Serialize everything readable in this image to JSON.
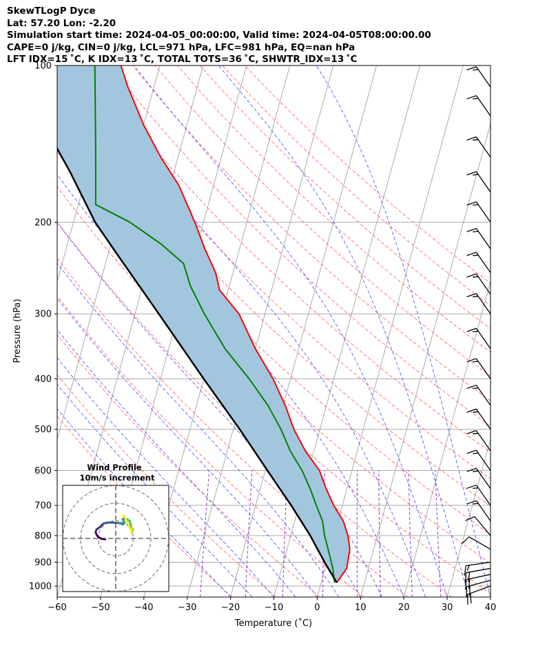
{
  "header": {
    "line1": "SkewTLogP Dyce",
    "line2": "Lat: 57.20   Lon: -2.20",
    "line3": "Simulation start time: 2024-04-05_00:00:00, Valid time: 2024-04-05T08:00:00.00",
    "line4": "CAPE=0 j/kg, CIN=0 j/kg, LCL=971 hPa, LFC=981 hPa, EQ=nan hPa",
    "line5": "LFT IDX=15 ˚C, K IDX=13 ˚C, TOTAL TOTS=36 ˚C, SHWTR_IDX=13 ˚C"
  },
  "colors": {
    "temperature": "#ff0000",
    "dewpoint": "#008000",
    "parcel": "#000000",
    "cape_fill": "#a3c6df",
    "dry_adiabats": "#ff6666",
    "moist_adiabats": "#4d4dff",
    "mixing_ratio": "#9933cc",
    "isotherms": "#aaaaaa"
  },
  "chart_data": {
    "type": "line",
    "subtype": "skew-T log-P",
    "xlabel": "Temperature (˚C)",
    "ylabel": "Pressure (hPa)",
    "xlim": [
      -60,
      40
    ],
    "ylim": [
      1050,
      100
    ],
    "y_scale": "log",
    "x_ticks": [
      "−60",
      "−50",
      "−40",
      "−30",
      "−20",
      "−10",
      "0",
      "10",
      "20",
      "30",
      "40"
    ],
    "y_ticks": [
      "100",
      "200",
      "300",
      "400",
      "500",
      "600",
      "700",
      "800",
      "900",
      "1000"
    ],
    "grid": true,
    "series": [
      {
        "key": "temperature",
        "points": [
          [
            3.6,
            985
          ],
          [
            5.0,
            925
          ],
          [
            4.5,
            850
          ],
          [
            3.2,
            800
          ],
          [
            1.2,
            750
          ],
          [
            -2.0,
            700
          ],
          [
            -4.8,
            650
          ],
          [
            -7.5,
            600
          ],
          [
            -12.0,
            550
          ],
          [
            -16.0,
            500
          ],
          [
            -19.5,
            450
          ],
          [
            -24.0,
            400
          ],
          [
            -30.0,
            350
          ],
          [
            -36.0,
            300
          ],
          [
            -42.0,
            270
          ],
          [
            -44.0,
            250
          ],
          [
            -48.0,
            225
          ],
          [
            -52.0,
            200
          ],
          [
            -58.0,
            170
          ],
          [
            -64.0,
            150
          ],
          [
            -70.0,
            130
          ],
          [
            -76.0,
            110
          ],
          [
            -79.0,
            100
          ]
        ]
      },
      {
        "key": "dewpoint",
        "points": [
          [
            3.1,
            985
          ],
          [
            1.8,
            925
          ],
          [
            -0.5,
            850
          ],
          [
            -2.2,
            800
          ],
          [
            -3.6,
            750
          ],
          [
            -6.0,
            700
          ],
          [
            -8.5,
            650
          ],
          [
            -11.5,
            600
          ],
          [
            -15.5,
            550
          ],
          [
            -19.0,
            500
          ],
          [
            -23.5,
            450
          ],
          [
            -29.5,
            400
          ],
          [
            -37.0,
            350
          ],
          [
            -44.0,
            300
          ],
          [
            -49.0,
            265
          ],
          [
            -52.0,
            240
          ],
          [
            -58.5,
            220
          ],
          [
            -67.0,
            200
          ],
          [
            -76.0,
            185
          ],
          [
            -80.0,
            140
          ],
          [
            -85.0,
            100
          ]
        ]
      },
      {
        "key": "parcel",
        "points": [
          [
            3.6,
            985
          ],
          [
            -0.5,
            900
          ],
          [
            -5.5,
            800
          ],
          [
            -11.8,
            700
          ],
          [
            -19.5,
            600
          ],
          [
            -28.5,
            500
          ],
          [
            -40.0,
            400
          ],
          [
            -54.5,
            300
          ],
          [
            -68.0,
            230
          ],
          [
            -75.0,
            200
          ],
          [
            -84.0,
            160
          ],
          [
            -93.0,
            130
          ],
          [
            -103.0,
            100
          ]
        ]
      }
    ],
    "dry_adiabats_theta_K": [
      250,
      260,
      270,
      280,
      290,
      300,
      310,
      320,
      330,
      340,
      350,
      360,
      370,
      380,
      390,
      400,
      410,
      420,
      430
    ],
    "moist_adiabats_start_C": [
      -20,
      -15,
      -10,
      -5,
      0,
      5,
      10,
      15,
      20,
      25,
      30,
      35,
      40
    ],
    "mixing_ratios_gkg": [
      0.4,
      1,
      2,
      4,
      7,
      10,
      16,
      24
    ],
    "wind_barbs": [
      {
        "p": 1000,
        "spd": 20,
        "dir": 250
      },
      {
        "p": 975,
        "spd": 20,
        "dir": 255
      },
      {
        "p": 950,
        "spd": 20,
        "dir": 258
      },
      {
        "p": 925,
        "spd": 20,
        "dir": 260
      },
      {
        "p": 900,
        "spd": 15,
        "dir": 262
      },
      {
        "p": 850,
        "spd": 10,
        "dir": 300
      },
      {
        "p": 800,
        "spd": 10,
        "dir": 320
      },
      {
        "p": 750,
        "spd": 15,
        "dir": 325
      },
      {
        "p": 700,
        "spd": 15,
        "dir": 325
      },
      {
        "p": 650,
        "spd": 15,
        "dir": 325
      },
      {
        "p": 600,
        "spd": 15,
        "dir": 325
      },
      {
        "p": 550,
        "spd": 15,
        "dir": 325
      },
      {
        "p": 500,
        "spd": 15,
        "dir": 325
      },
      {
        "p": 450,
        "spd": 15,
        "dir": 325
      },
      {
        "p": 400,
        "spd": 15,
        "dir": 325
      },
      {
        "p": 350,
        "spd": 15,
        "dir": 325
      },
      {
        "p": 300,
        "spd": 15,
        "dir": 325
      },
      {
        "p": 275,
        "spd": 15,
        "dir": 325
      },
      {
        "p": 250,
        "spd": 15,
        "dir": 325
      },
      {
        "p": 225,
        "spd": 15,
        "dir": 325
      },
      {
        "p": 200,
        "spd": 15,
        "dir": 325
      },
      {
        "p": 175,
        "spd": 15,
        "dir": 325
      },
      {
        "p": 150,
        "spd": 15,
        "dir": 325
      },
      {
        "p": 125,
        "spd": 15,
        "dir": 325
      },
      {
        "p": 110,
        "spd": 15,
        "dir": 325
      }
    ],
    "hodograph": {
      "title": "Wind Profile",
      "subtitle": "10m/s increment",
      "rings_ms": [
        10,
        20,
        30
      ],
      "colormap": "viridis",
      "points_ms": [
        [
          -6,
          -0.5
        ],
        [
          -8,
          -0.2
        ],
        [
          -9.5,
          0.5
        ],
        [
          -10.5,
          1.5
        ],
        [
          -11.5,
          3.5
        ],
        [
          -11,
          5
        ],
        [
          -9,
          6.5
        ],
        [
          -7,
          8.5
        ],
        [
          -5,
          9
        ],
        [
          -2,
          9
        ],
        [
          1,
          8.8
        ],
        [
          3,
          8.5
        ],
        [
          4,
          8
        ],
        [
          5,
          9
        ],
        [
          4,
          11
        ],
        [
          5,
          11.5
        ],
        [
          6,
          11
        ],
        [
          7,
          10.5
        ],
        [
          8,
          10
        ],
        [
          8.5,
          8
        ],
        [
          9,
          6
        ],
        [
          9.5,
          5
        ],
        [
          10,
          5.2
        ],
        [
          9,
          3.2
        ],
        [
          8.8,
          4.5
        ],
        [
          5,
          12.5
        ],
        [
          4,
          13
        ]
      ]
    }
  }
}
